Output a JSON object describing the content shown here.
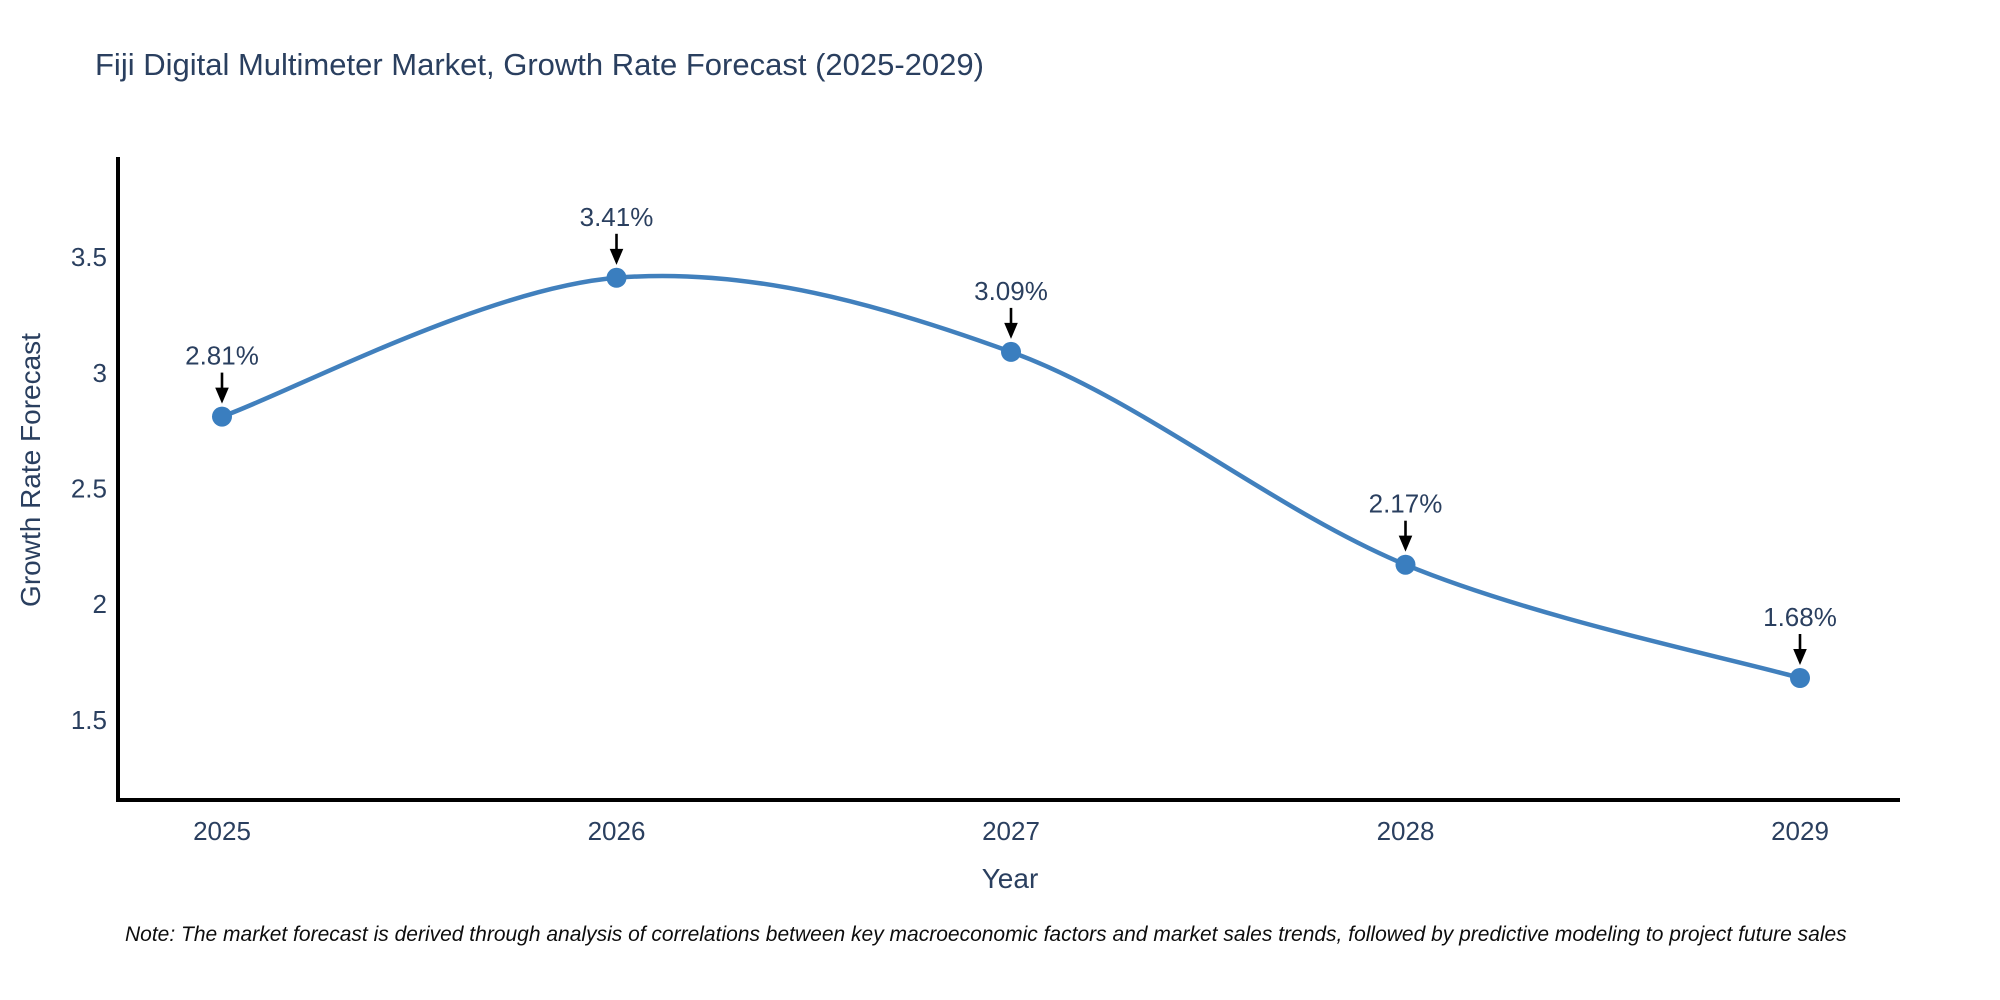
{
  "page": {
    "title": "Fiji Digital Multimeter Market, Growth Rate Forecast (2025-2029)",
    "note": "Note: The market forecast is derived through analysis of correlations between key macroeconomic factors and market sales trends, followed by predictive modeling to project future sales"
  },
  "chart_data": {
    "type": "line",
    "title": "Fiji Digital Multimeter Market, Growth Rate Forecast (2025-2029)",
    "xlabel": "Year",
    "ylabel": "Growth Rate Forecast",
    "x": [
      2025,
      2026,
      2027,
      2028,
      2029
    ],
    "y": [
      2.81,
      3.41,
      3.09,
      2.17,
      1.68
    ],
    "point_labels": [
      "2.81%",
      "3.41%",
      "3.09%",
      "2.17%",
      "1.68%"
    ],
    "xtick_labels": [
      "2025",
      "2026",
      "2027",
      "2028",
      "2029"
    ],
    "ytick_labels": [
      "1.5",
      "2",
      "2.5",
      "3",
      "3.5"
    ],
    "ytick_values": [
      1.5,
      2,
      2.5,
      3,
      3.5
    ],
    "xlim": [
      2024.74,
      2029.25
    ],
    "ylim": [
      1.15,
      3.93
    ],
    "line_shape": "spline",
    "grid": false,
    "legend": "none",
    "colors": {
      "line": "#4180bd",
      "marker": "#3a7ebf",
      "arrow": "#000000",
      "text": "#2a3f5f",
      "axis": "#000000"
    }
  }
}
